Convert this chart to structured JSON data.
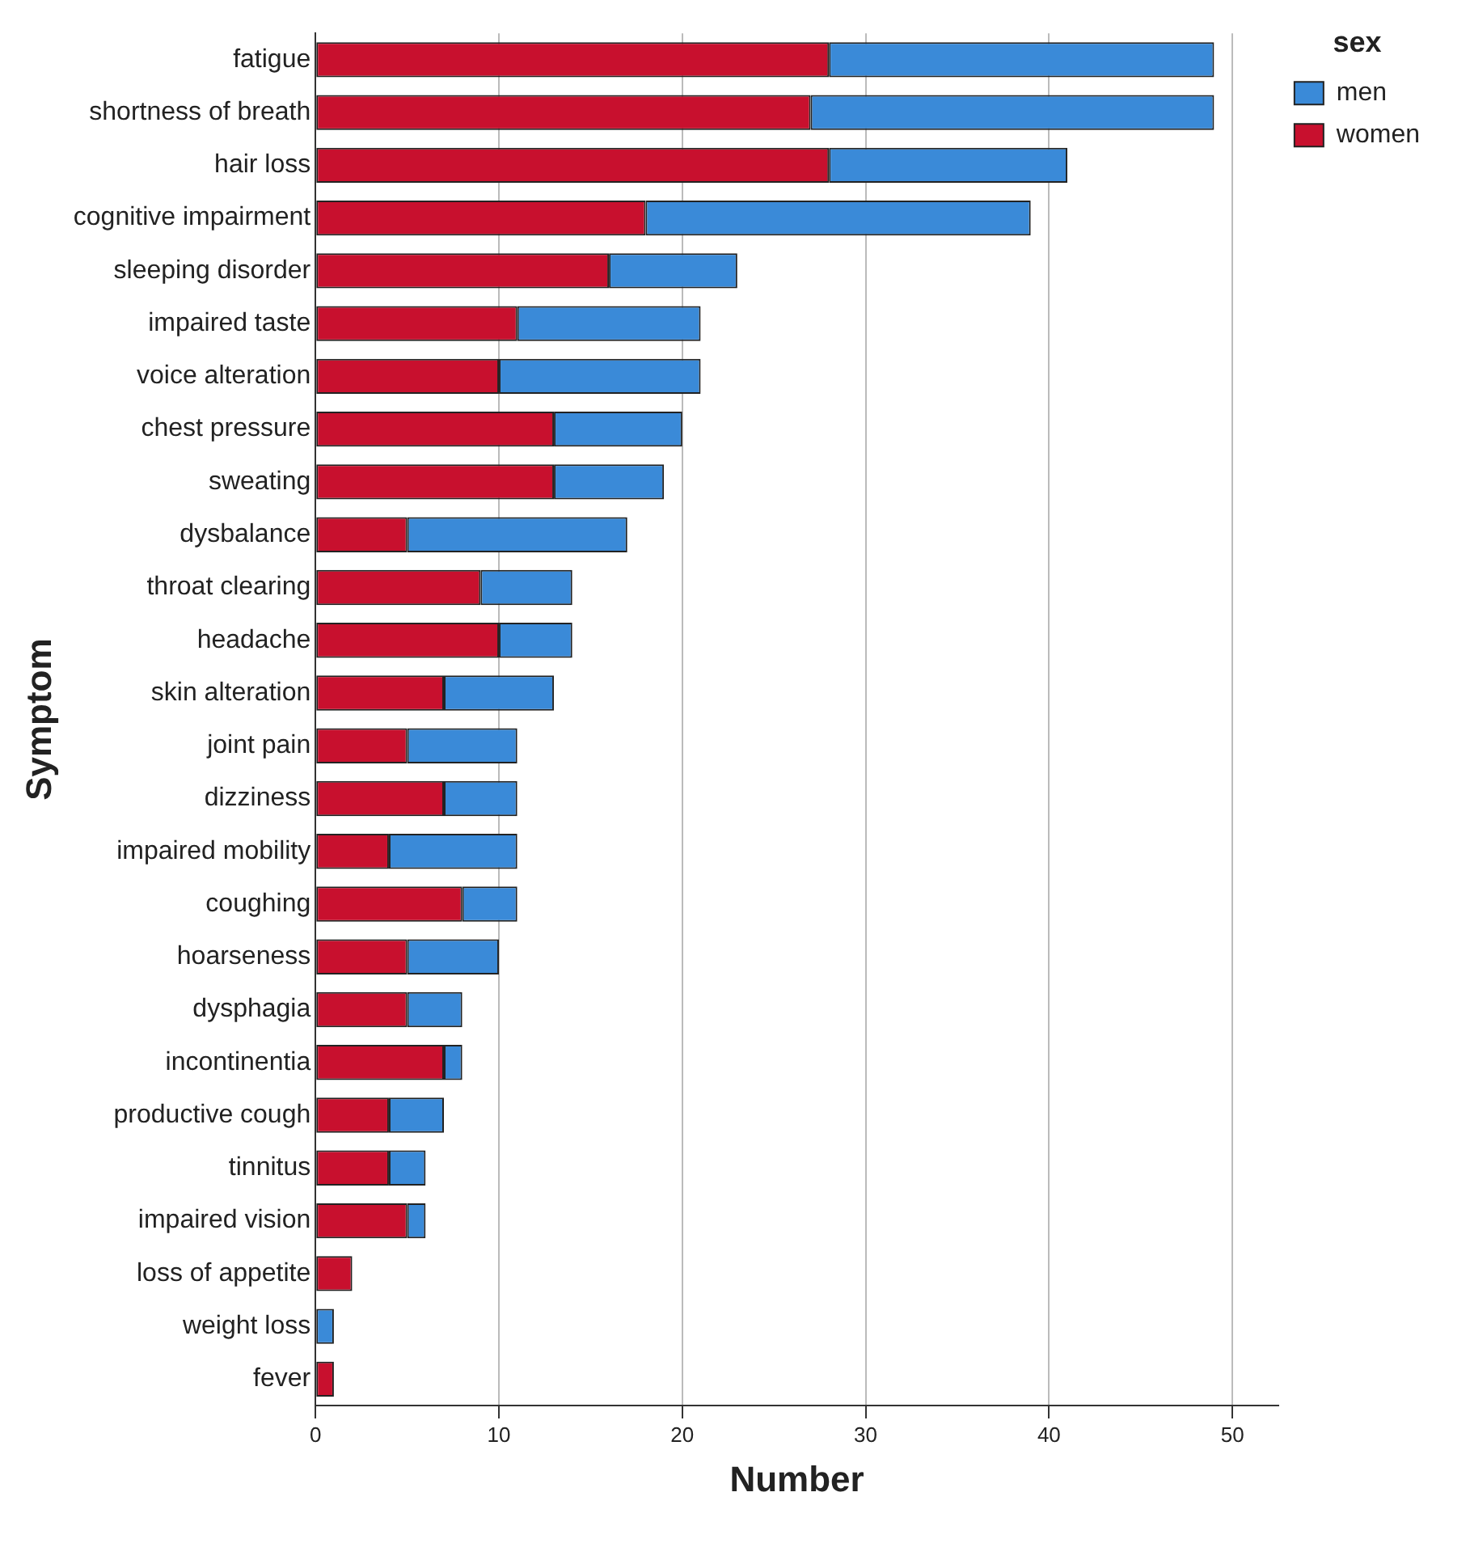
{
  "chart_data": {
    "type": "bar",
    "orientation": "horizontal",
    "stacked": true,
    "xlabel": "Number",
    "ylabel": "Symptom",
    "legend_title": "sex",
    "legend": "top right",
    "grid": "x",
    "categories": [
      "fatigue",
      "shortness of breath",
      "hair loss",
      "cognitive impairment",
      "sleeping disorder",
      "impaired taste",
      "voice alteration",
      "chest pressure",
      "sweating",
      "dysbalance",
      "throat clearing",
      "headache",
      "skin alteration",
      "joint pain",
      "dizziness",
      "impaired mobility",
      "coughing",
      "hoarseness",
      "dysphagia",
      "incontinentia",
      "productive cough",
      "tinnitus",
      "impaired vision",
      "loss of appetite",
      "weight loss",
      "fever"
    ],
    "series": [
      {
        "name": "women",
        "color": "#c8102e",
        "values": [
          28,
          27,
          28,
          18,
          16,
          11,
          10,
          13,
          13,
          5,
          9,
          10,
          7,
          5,
          7,
          4,
          8,
          5,
          5,
          7,
          4,
          4,
          5,
          2,
          0,
          1
        ]
      },
      {
        "name": "men",
        "color": "#3a8ad8",
        "values": [
          21,
          22,
          13,
          21,
          7,
          10,
          11,
          7,
          6,
          12,
          5,
          4,
          6,
          6,
          4,
          7,
          3,
          5,
          3,
          1,
          3,
          2,
          1,
          0,
          1,
          0
        ]
      }
    ],
    "xlim": [
      0,
      52.5
    ],
    "xticks": [
      0,
      10,
      20,
      30,
      40,
      50
    ]
  }
}
